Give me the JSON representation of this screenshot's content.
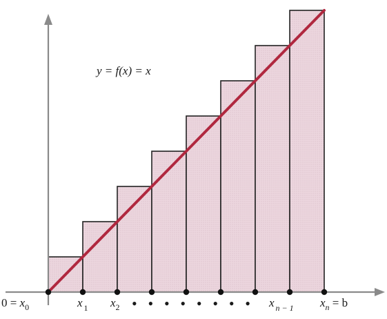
{
  "equation": "y = f(x) = x",
  "x_labels": {
    "x0": {
      "pre": "0 = ",
      "base": "x",
      "sub": "0"
    },
    "x1": {
      "base": "x",
      "sub": "1"
    },
    "x2": {
      "base": "x",
      "sub": "2"
    },
    "xn1": {
      "base": "x",
      "sub": "n − 1"
    },
    "xn": {
      "base": "x",
      "sub": "n",
      "post": " = b"
    }
  },
  "ellipsis": "• • • • • • • •",
  "colors": {
    "line": "#b0283f",
    "fill": "#ecd6de",
    "edge": "#222222",
    "axis": "#8a8a8a",
    "point": "#111111"
  },
  "chart_data": {
    "type": "bar",
    "function": "f(x) = x",
    "partition_points": 9,
    "rectangle_heights_in_steps": [
      1,
      2,
      3,
      4,
      5,
      6,
      7,
      8
    ]
  }
}
